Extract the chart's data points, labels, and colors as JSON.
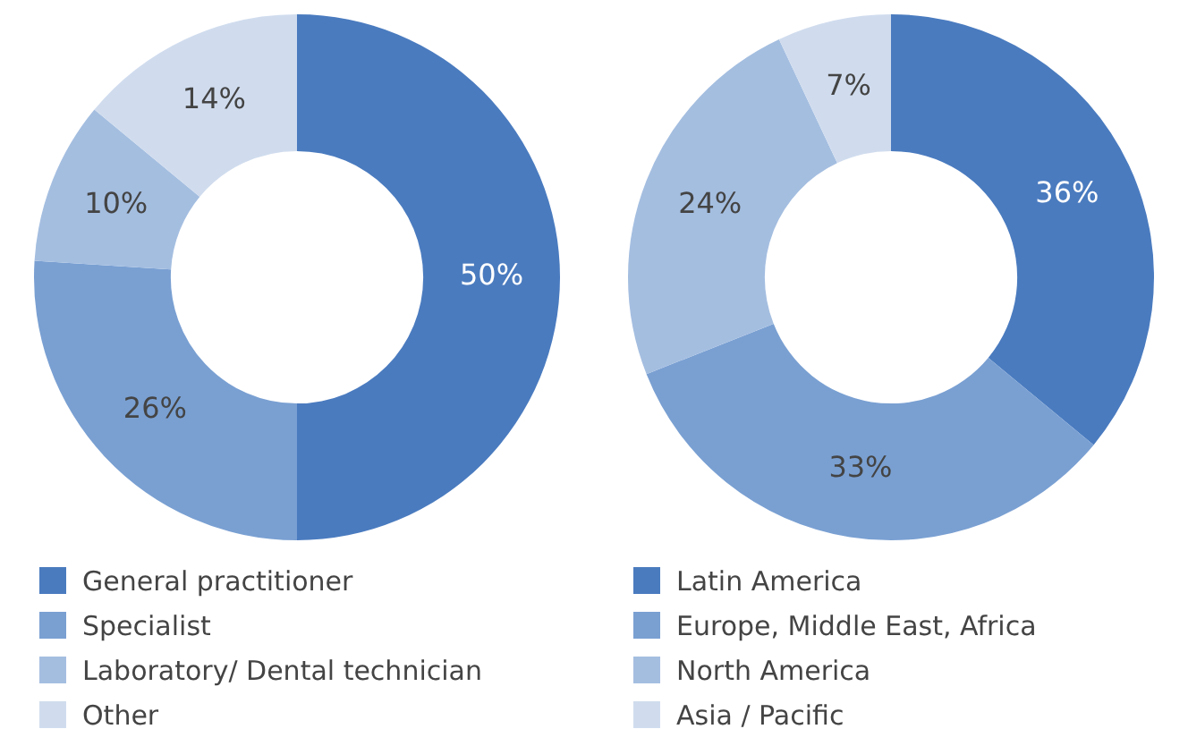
{
  "chart_data": [
    {
      "type": "donut",
      "categories": [
        "General practitioner",
        "Specialist",
        "Laboratory/ Dental technician",
        "Other"
      ],
      "values": [
        50,
        26,
        10,
        14
      ],
      "value_labels": [
        "50%",
        "26%",
        "10%",
        "14%"
      ],
      "colors": [
        "#4a7bbf",
        "#7aa0d2",
        "#a4bee0",
        "#d0dcee"
      ],
      "legend": "bottom"
    },
    {
      "type": "donut",
      "categories": [
        "Latin America",
        "Europe, Middle East, Africa",
        "North America",
        "Asia / Pacific"
      ],
      "values": [
        36,
        33,
        24,
        7
      ],
      "value_labels": [
        "36%",
        "33%",
        "24%",
        "7%"
      ],
      "colors": [
        "#4a7bbf",
        "#7aa0d2",
        "#a4bee0",
        "#d0dcee"
      ],
      "legend": "bottom"
    }
  ]
}
